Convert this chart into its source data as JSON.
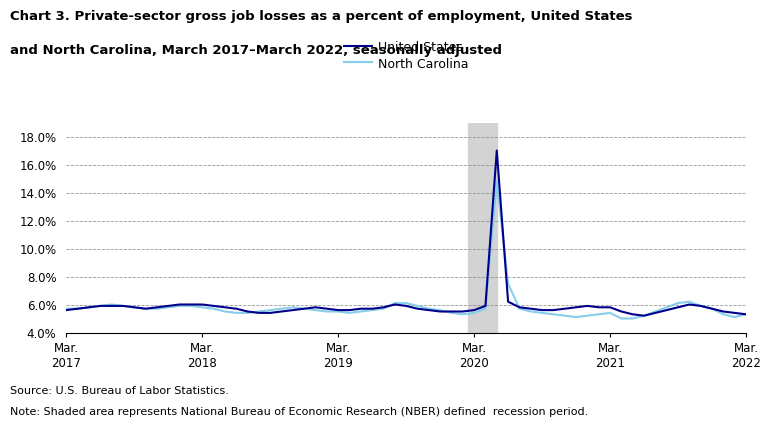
{
  "title_line1": "Chart 3. Private-sector gross job losses as a percent of employment, United States",
  "title_line2": "and North Carolina, March 2017–March 2022, seasonally adjusted",
  "source": "Source: U.S. Bureau of Labor Statistics.",
  "note": "Note: Shaded area represents National Bureau of Economic Research (NBER) defined  recession period.",
  "us_label": "United States",
  "nc_label": "North Carolina",
  "us_color": "#00008B",
  "nc_color": "#87CEEB",
  "recession_color": "#D3D3D3",
  "background_color": "#FFFFFF",
  "ylim": [
    4.0,
    19.0
  ],
  "ylim_display": [
    4.0,
    18.0
  ],
  "yticks": [
    4.0,
    6.0,
    8.0,
    10.0,
    12.0,
    14.0,
    16.0,
    18.0
  ],
  "recession_start": 35.5,
  "recession_end": 38.0,
  "x_tick_positions": [
    0,
    12,
    24,
    36,
    48,
    60
  ],
  "x_tick_labels": [
    "Mar.\n2017",
    "Mar.\n2018",
    "Mar.\n2019",
    "Mar.\n2020",
    "Mar.\n2021",
    "Mar.\n2022"
  ],
  "us_data": [
    5.6,
    5.7,
    5.8,
    5.9,
    5.9,
    5.9,
    5.8,
    5.7,
    5.8,
    5.9,
    6.0,
    6.0,
    6.0,
    5.9,
    5.8,
    5.7,
    5.5,
    5.4,
    5.4,
    5.5,
    5.6,
    5.7,
    5.8,
    5.7,
    5.6,
    5.6,
    5.7,
    5.7,
    5.8,
    6.0,
    5.9,
    5.7,
    5.6,
    5.5,
    5.5,
    5.5,
    5.6,
    5.9,
    17.0,
    6.2,
    5.8,
    5.7,
    5.6,
    5.6,
    5.7,
    5.8,
    5.9,
    5.8,
    5.8,
    5.5,
    5.3,
    5.2,
    5.4,
    5.6,
    5.8,
    6.0,
    5.9,
    5.7,
    5.5,
    5.4,
    5.3
  ],
  "nc_data": [
    5.7,
    5.7,
    5.8,
    5.9,
    6.0,
    5.9,
    5.8,
    5.7,
    5.7,
    5.8,
    5.9,
    5.9,
    5.8,
    5.7,
    5.5,
    5.4,
    5.4,
    5.5,
    5.6,
    5.7,
    5.8,
    5.7,
    5.6,
    5.5,
    5.5,
    5.4,
    5.5,
    5.6,
    5.7,
    6.1,
    6.1,
    5.9,
    5.7,
    5.6,
    5.4,
    5.3,
    5.4,
    5.7,
    14.8,
    7.5,
    5.7,
    5.5,
    5.4,
    5.3,
    5.2,
    5.1,
    5.2,
    5.3,
    5.4,
    5.0,
    5.0,
    5.2,
    5.5,
    5.8,
    6.1,
    6.2,
    5.9,
    5.7,
    5.3,
    5.1,
    5.3
  ]
}
